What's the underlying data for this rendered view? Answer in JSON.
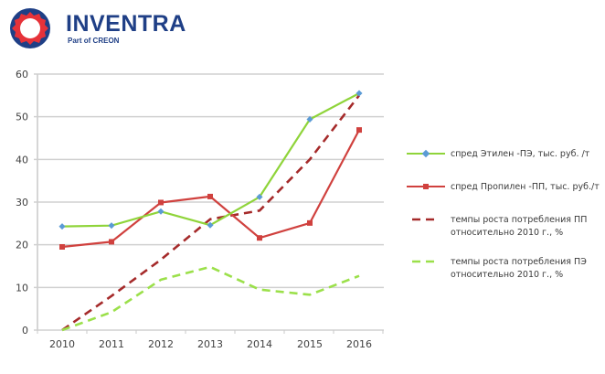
{
  "logo": {
    "name": "INVENTRA",
    "subtitle": "Part of CREON",
    "colors": {
      "primary": "#1f3f86",
      "accent": "#e63239"
    }
  },
  "chart_data": {
    "type": "line",
    "title": "",
    "xlabel": "",
    "ylabel": "",
    "categories": [
      "2010",
      "2011",
      "2012",
      "2013",
      "2014",
      "2015",
      "2016"
    ],
    "ylim": [
      0,
      60
    ],
    "yticks": [
      0,
      10,
      20,
      30,
      40,
      50,
      60
    ],
    "grid": true,
    "legend_position": "right",
    "series": [
      {
        "name": "спред Этилен -ПЭ, тыс. руб. /т",
        "style": "solid",
        "marker": "diamond",
        "color": "#8fd43a",
        "marker_color": "#5b9bd5",
        "values": [
          24.3,
          24.5,
          27.8,
          24.6,
          31.2,
          49.4,
          55.5
        ]
      },
      {
        "name": "спред Пропилен -ПП, тыс. руб./т",
        "style": "solid",
        "marker": "square",
        "color": "#d0413e",
        "marker_color": "#d0413e",
        "values": [
          19.5,
          20.7,
          29.9,
          31.3,
          21.6,
          25.1,
          46.9
        ]
      },
      {
        "name": "темпы роста потребления ПП относительно 2010 г., %",
        "style": "dashed",
        "marker": "none",
        "color": "#a52a2a",
        "values": [
          0,
          8,
          16.5,
          26,
          28,
          40,
          55
        ]
      },
      {
        "name": "темпы роста потребления ПЭ относительно 2010 г., %",
        "style": "dashed",
        "marker": "none",
        "color": "#9be04a",
        "values": [
          0,
          4.2,
          11.8,
          14.8,
          9.5,
          8.3,
          12.7
        ]
      }
    ]
  }
}
